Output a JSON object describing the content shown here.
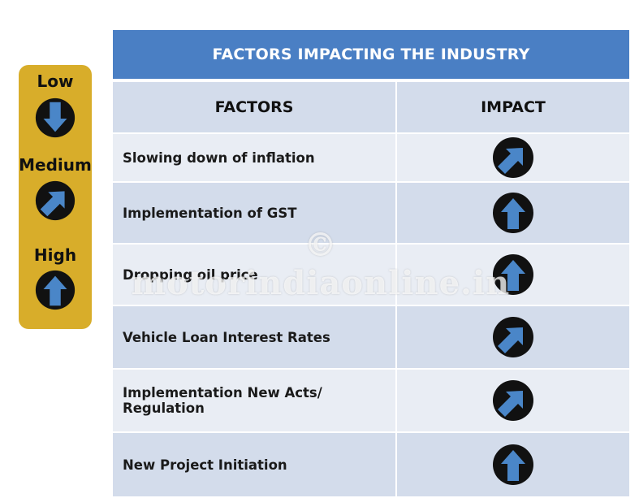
{
  "title": "FACTORS IMPACTING THE INDUSTRY",
  "headers": {
    "factors": "FACTORS",
    "impact": "IMPACT"
  },
  "legend": [
    {
      "label": "Low",
      "icon": "arrow-down-icon"
    },
    {
      "label": "Medium",
      "icon": "arrow-diagonal-up-right-icon"
    },
    {
      "label": "High",
      "icon": "arrow-up-icon"
    }
  ],
  "rows": [
    {
      "factor": "Slowing down of inflation",
      "impact": "Medium"
    },
    {
      "factor": "Implementation of GST",
      "impact": "High"
    },
    {
      "factor": "Dropping oil price",
      "impact": "High"
    },
    {
      "factor": "Vehicle Loan Interest Rates",
      "impact": "Medium"
    },
    {
      "factor": "Implementation New Acts/ Regulation",
      "impact": "Medium"
    },
    {
      "factor": "New Project Initiation",
      "impact": "High"
    }
  ],
  "watermark": "© motorindiaonline.in",
  "colors": {
    "title_bar": "#4a7fc4",
    "legend_bg": "#d8ad2a",
    "arrow": "#4a86c8",
    "circle": "#111111"
  }
}
